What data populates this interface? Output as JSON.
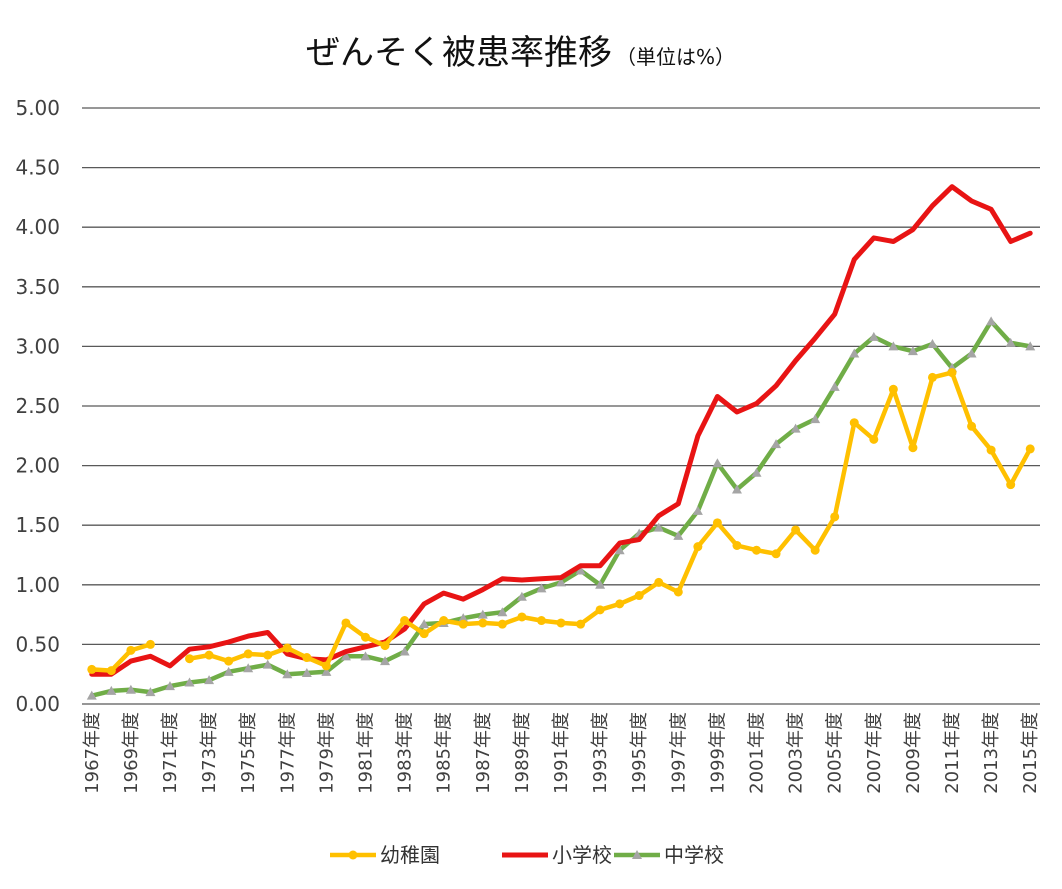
{
  "chart_data": {
    "type": "line",
    "title": "ぜんそく被患率推移",
    "subtitle": "（単位は%）",
    "xlabel": "",
    "ylabel": "",
    "ylim": [
      0,
      5
    ],
    "yticks": [
      "0.00",
      "0.50",
      "1.00",
      "1.50",
      "2.00",
      "2.50",
      "3.00",
      "3.50",
      "4.00",
      "4.50",
      "5.00"
    ],
    "grid": true,
    "legend_position": "bottom",
    "x": [
      "1967年度",
      "1968年度",
      "1969年度",
      "1970年度",
      "1971年度",
      "1972年度",
      "1973年度",
      "1974年度",
      "1975年度",
      "1976年度",
      "1977年度",
      "1978年度",
      "1979年度",
      "1980年度",
      "1981年度",
      "1982年度",
      "1983年度",
      "1984年度",
      "1985年度",
      "1986年度",
      "1987年度",
      "1988年度",
      "1989年度",
      "1990年度",
      "1991年度",
      "1992年度",
      "1993年度",
      "1994年度",
      "1995年度",
      "1996年度",
      "1997年度",
      "1998年度",
      "1999年度",
      "2000年度",
      "2001年度",
      "2002年度",
      "2003年度",
      "2004年度",
      "2005年度",
      "2006年度",
      "2007年度",
      "2008年度",
      "2009年度",
      "2010年度",
      "2011年度",
      "2012年度",
      "2013年度",
      "2014年度",
      "2015年度"
    ],
    "x_tick_labels": [
      "1967年度",
      "1969年度",
      "1971年度",
      "1973年度",
      "1975年度",
      "1977年度",
      "1979年度",
      "1981年度",
      "1983年度",
      "1985年度",
      "1987年度",
      "1989年度",
      "1991年度",
      "1993年度",
      "1995年度",
      "1997年度",
      "1999年度",
      "2001年度",
      "2003年度",
      "2005年度",
      "2007年度",
      "2009年度",
      "2011年度",
      "2013年度",
      "2015年度"
    ],
    "series": [
      {
        "name": "幼稚園",
        "color": "#FFC000",
        "marker": "circle",
        "values": [
          0.29,
          0.28,
          0.45,
          0.5,
          null,
          0.38,
          0.41,
          0.36,
          0.42,
          0.41,
          0.47,
          0.39,
          0.32,
          0.68,
          0.56,
          0.49,
          0.7,
          0.59,
          0.7,
          0.67,
          0.68,
          0.67,
          0.73,
          0.7,
          0.68,
          0.67,
          0.79,
          0.84,
          0.91,
          1.02,
          0.94,
          1.32,
          1.52,
          1.33,
          1.29,
          1.26,
          1.46,
          1.29,
          1.57,
          2.36,
          2.22,
          2.64,
          2.15,
          2.74,
          2.78,
          2.33,
          2.13,
          1.84,
          2.14
        ]
      },
      {
        "name": "小学校",
        "color": "#E81414",
        "marker": "none",
        "values": [
          0.25,
          0.25,
          0.36,
          0.4,
          0.32,
          0.46,
          0.48,
          0.52,
          0.57,
          0.6,
          0.42,
          0.38,
          0.37,
          0.44,
          0.48,
          0.52,
          0.63,
          0.84,
          0.93,
          0.88,
          0.96,
          1.05,
          1.04,
          1.05,
          1.06,
          1.16,
          1.16,
          1.35,
          1.38,
          1.58,
          1.68,
          2.25,
          2.58,
          2.45,
          2.52,
          2.67,
          2.88,
          3.07,
          3.27,
          3.73,
          3.91,
          3.88,
          3.98,
          4.18,
          4.34,
          4.22,
          4.15,
          3.88,
          3.95
        ]
      },
      {
        "name": "中学校",
        "color": "#70AD47",
        "marker": "triangle",
        "values": [
          0.07,
          0.11,
          0.12,
          0.1,
          0.15,
          0.18,
          0.2,
          0.27,
          0.3,
          0.33,
          0.25,
          0.26,
          0.27,
          0.4,
          0.4,
          0.36,
          0.44,
          0.67,
          0.68,
          0.72,
          0.75,
          0.77,
          0.9,
          0.97,
          1.02,
          1.12,
          1.0,
          1.29,
          1.43,
          1.48,
          1.41,
          1.62,
          2.02,
          1.8,
          1.94,
          2.18,
          2.31,
          2.39,
          2.66,
          2.94,
          3.08,
          3.0,
          2.96,
          3.02,
          2.82,
          2.94,
          3.21,
          3.03,
          3.0
        ]
      }
    ]
  }
}
